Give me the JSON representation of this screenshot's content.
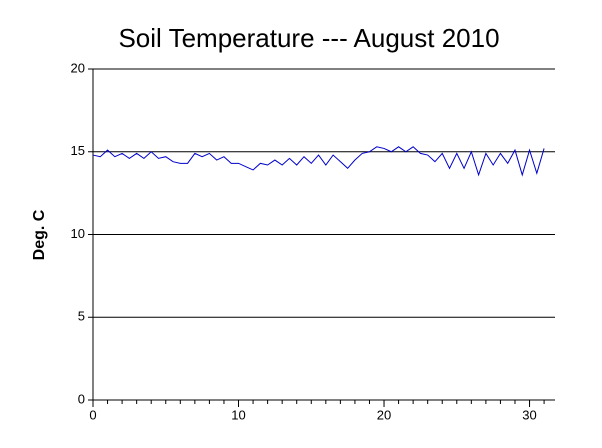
{
  "chart_data": {
    "type": "line",
    "title": "Soil Temperature --- August 2010",
    "ylabel": "Deg. C",
    "x": [
      0,
      0.5,
      1,
      1.5,
      2,
      2.5,
      3,
      3.5,
      4,
      4.5,
      5,
      5.5,
      6,
      6.5,
      7,
      7.5,
      8,
      8.5,
      9,
      9.5,
      10,
      10.5,
      11,
      11.5,
      12,
      12.5,
      13,
      13.5,
      14,
      14.5,
      15,
      15.5,
      16,
      16.5,
      17,
      17.5,
      18,
      18.5,
      19,
      19.5,
      20,
      20.5,
      21,
      21.5,
      22,
      22.5,
      23,
      23.5,
      24,
      24.5,
      25,
      25.5,
      26,
      26.5,
      27,
      27.5,
      28,
      28.5,
      29,
      29.5,
      30,
      30.5,
      31
    ],
    "series": [
      {
        "color": "#0000cc",
        "values": [
          14.8,
          14.7,
          15.1,
          14.7,
          14.9,
          14.6,
          14.9,
          14.6,
          15.0,
          14.6,
          14.7,
          14.4,
          14.3,
          14.3,
          14.9,
          14.7,
          14.9,
          14.5,
          14.7,
          14.3,
          14.3,
          14.1,
          13.9,
          14.3,
          14.2,
          14.5,
          14.2,
          14.6,
          14.2,
          14.7,
          14.3,
          14.8,
          14.2,
          14.8,
          14.4,
          14.0,
          14.5,
          14.9,
          15.0,
          15.3,
          15.2,
          15.0,
          15.3,
          15.0,
          15.3,
          14.9,
          14.8,
          14.4,
          14.9,
          14.0,
          14.9,
          14.0,
          15.0,
          13.6,
          14.9,
          14.2,
          14.9,
          14.3,
          15.1,
          13.6,
          15.1,
          13.7,
          15.2
        ]
      }
    ],
    "xlim": [
      0,
      31.75
    ],
    "ylim": [
      0,
      20
    ],
    "xticks": [
      0,
      10,
      20,
      30
    ],
    "yticks": [
      0,
      5,
      10,
      15,
      20
    ],
    "x_minor_ticks": [
      0,
      1,
      2,
      3,
      4,
      5,
      6,
      7,
      8,
      9,
      10,
      11,
      12,
      13,
      14,
      15,
      16,
      17,
      18,
      19,
      20,
      21,
      22,
      23,
      24,
      25,
      26,
      27,
      28,
      29,
      30,
      31
    ],
    "grid": true
  }
}
